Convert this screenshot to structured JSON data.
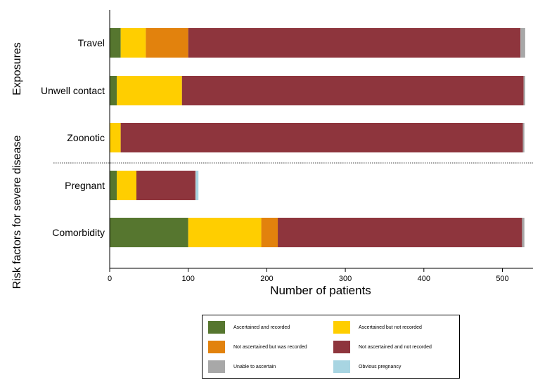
{
  "chart_data": {
    "type": "bar",
    "orientation": "horizontal",
    "stacked": true,
    "categories": [
      "Travel",
      "Unwell contact",
      "Zoonotic",
      "Pregnant",
      "Comorbidity"
    ],
    "groups": [
      {
        "title": "Exposures",
        "categories": [
          "Travel",
          "Unwell contact",
          "Zoonotic"
        ]
      },
      {
        "title": "Risk factors for severe disease",
        "categories": [
          "Pregnant",
          "Comorbidity"
        ]
      }
    ],
    "series": [
      {
        "name": "Ascertained and recorded",
        "color": "#56762f",
        "values": [
          14,
          9,
          0,
          9,
          100
        ]
      },
      {
        "name": "Ascertained but not recorded",
        "color": "#ffce00",
        "values": [
          32,
          83,
          14,
          25,
          93
        ]
      },
      {
        "name": "Not ascertained but was recorded",
        "color": "#e2820d",
        "values": [
          54,
          0,
          0,
          0,
          21
        ]
      },
      {
        "name": "Not ascertained and not recorded",
        "color": "#8e353d",
        "values": [
          423,
          435,
          512,
          75,
          311
        ]
      },
      {
        "name": "Unable to ascertain",
        "color": "#a8a8a8",
        "values": [
          6,
          2,
          2,
          1,
          3
        ]
      },
      {
        "name": "Obvious pregnancy",
        "color": "#a8d5e2",
        "values": [
          0,
          0,
          0,
          3,
          0
        ]
      }
    ],
    "xlabel": "Number of patients",
    "ylabel": "",
    "xlim": [
      0,
      540
    ],
    "xticks": [
      0,
      100,
      200,
      300,
      400,
      500
    ],
    "grid": false,
    "legend_position": "bottom"
  }
}
